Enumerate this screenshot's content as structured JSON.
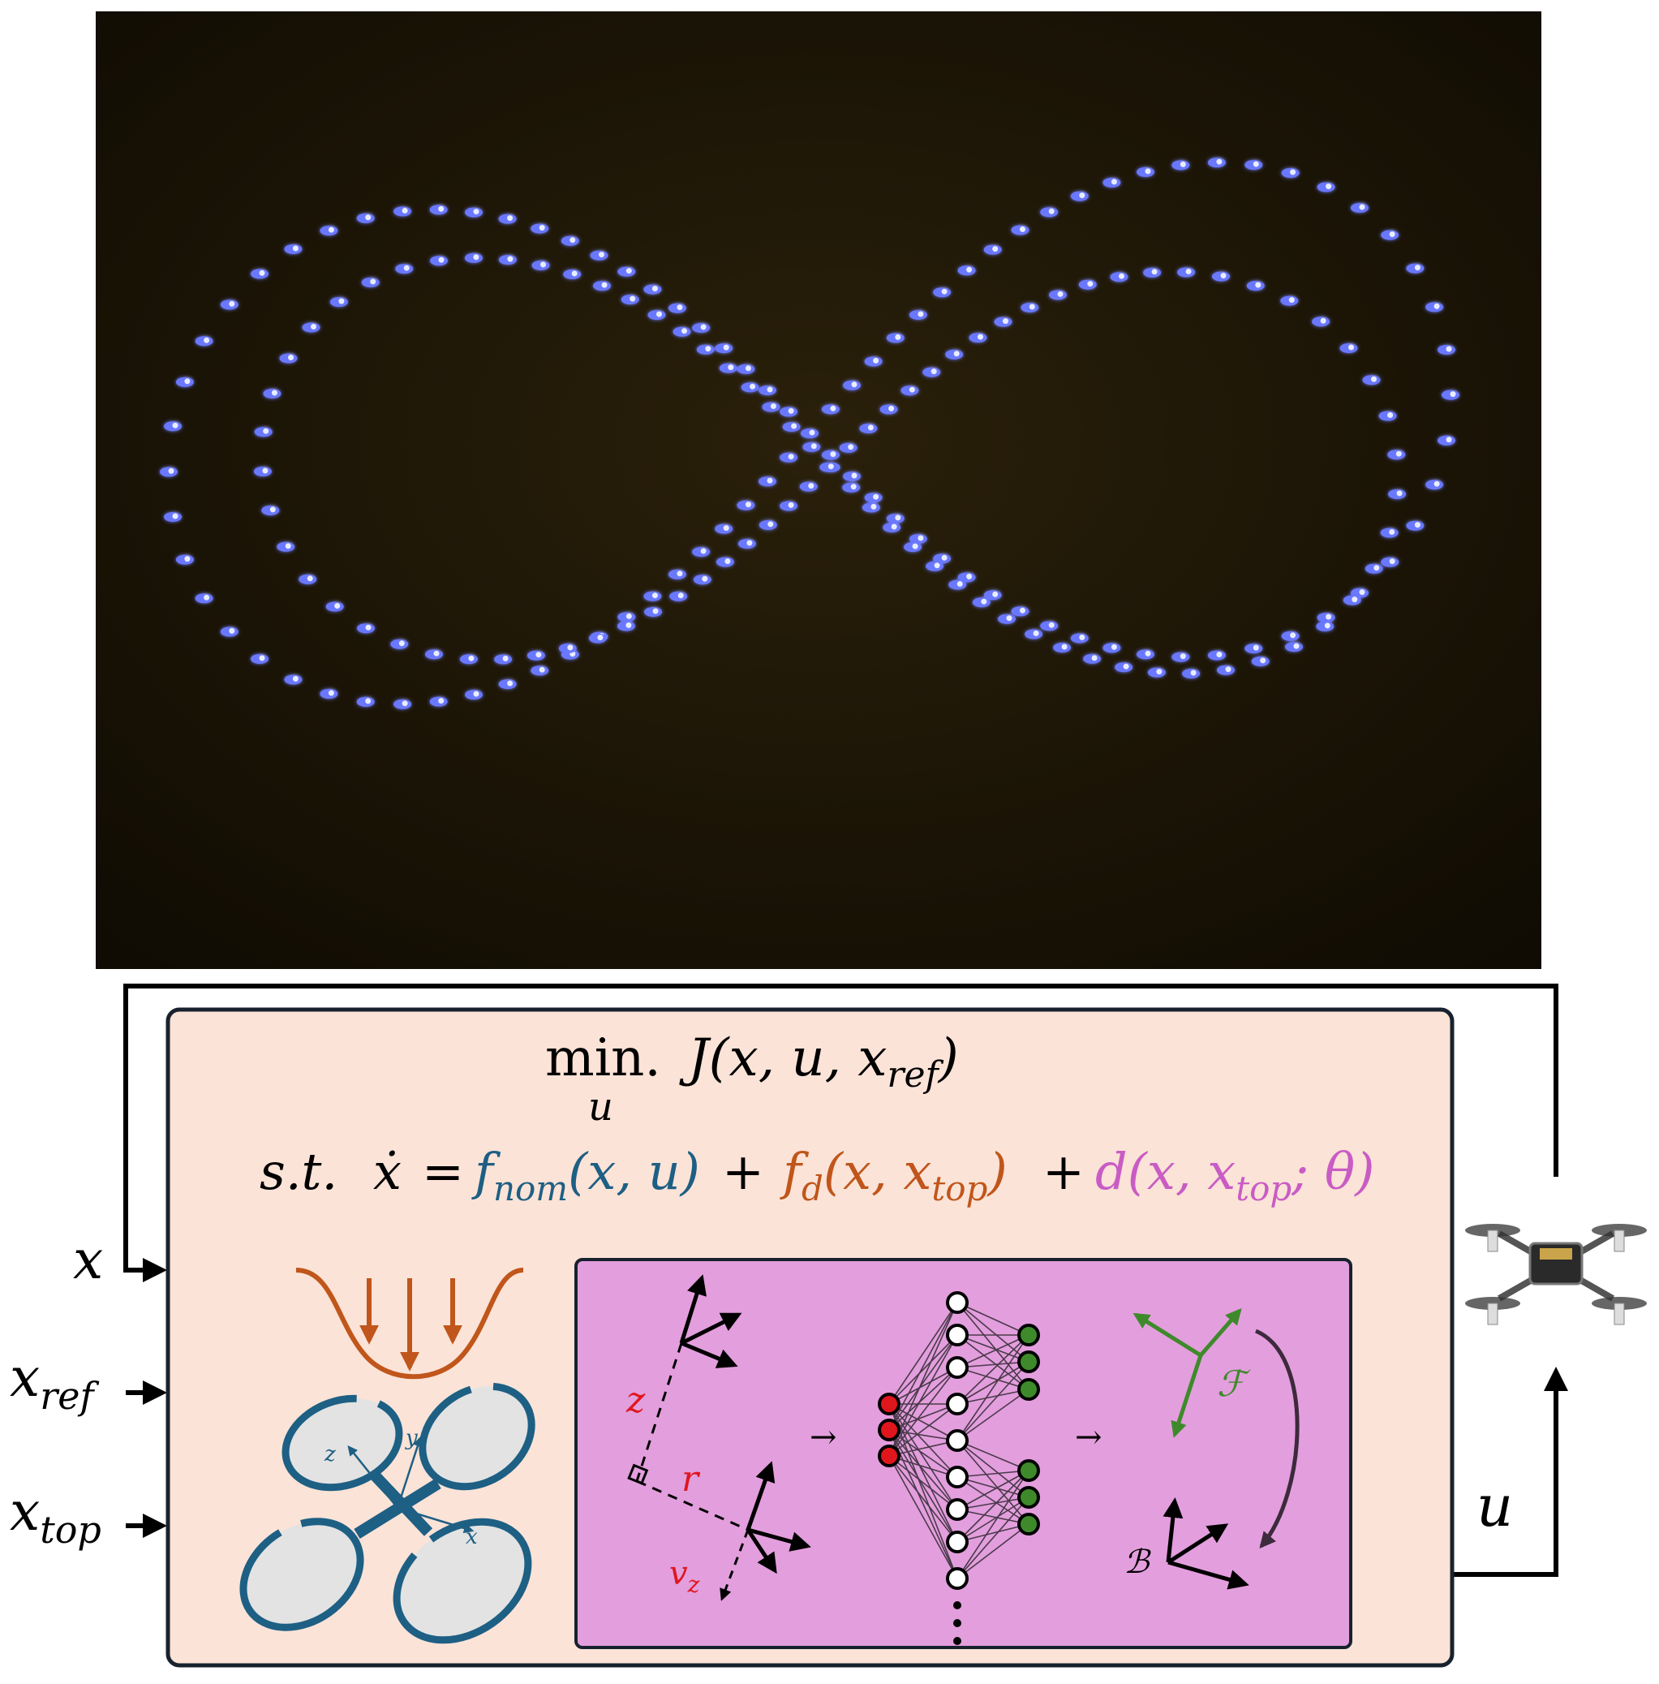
{
  "photo": {
    "background": "#1c1506",
    "light_color": "#6a78ff"
  },
  "objective": {
    "min_label": "min.",
    "min_subscript": "u",
    "cost": "J(x, u, x",
    "cost_sub": "ref",
    "cost_close": ")"
  },
  "constraint": {
    "st": "s.t.",
    "xdot": "ẋ",
    "equals": "=",
    "f_nom": "f",
    "f_nom_sub": "nom",
    "f_nom_args": "(x, u)",
    "plus1": "+",
    "f_d": "f",
    "f_d_sub": "d",
    "f_d_args_open": "(x, x",
    "f_d_args_sub": "top",
    "f_d_args_close": ")",
    "plus2": "+",
    "d_open": "d(x, x",
    "d_sub": "top",
    "d_close": "; θ)"
  },
  "inputs": {
    "x": "x",
    "x_ref": "x",
    "x_ref_sub": "ref",
    "x_top": "x",
    "x_top_sub": "top",
    "u": "u"
  },
  "quad_axes": {
    "x": "x",
    "y": "y",
    "z": "z"
  },
  "network_panel": {
    "z_label": "z",
    "r_label": "r",
    "vz_label": "v",
    "vz_sub": "z",
    "F_label": "ℱ",
    "B_label": "ℬ",
    "arrow": "→"
  },
  "colors": {
    "box_fill": "#fbe3d7",
    "panel_fill": "#e39edd",
    "teal": "#1e5f84",
    "orange": "#c0561b",
    "magenta": "#c95cc4",
    "green": "#3e8a2a",
    "red": "#e0161d"
  }
}
